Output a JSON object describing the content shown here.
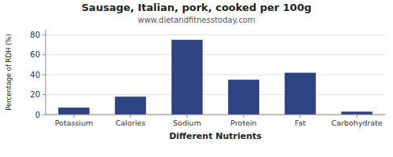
{
  "chart_data": {
    "type": "bar",
    "title": "Sausage, Italian, pork, cooked per 100g",
    "subtitle": "www.dietandfitnesstoday.com",
    "x_label": "Different Nutrients",
    "y_label": "Percentage of RDH (%)",
    "categories": [
      "Potassium",
      "Calories",
      "Sodium",
      "Protein",
      "Fat",
      "Carbohydrate"
    ],
    "values": [
      7,
      18,
      75,
      35,
      42,
      3
    ],
    "color": "#2e4482",
    "ylim": [
      0,
      85
    ],
    "yticks": [
      0,
      20,
      40,
      60,
      80
    ],
    "grid": true
  }
}
